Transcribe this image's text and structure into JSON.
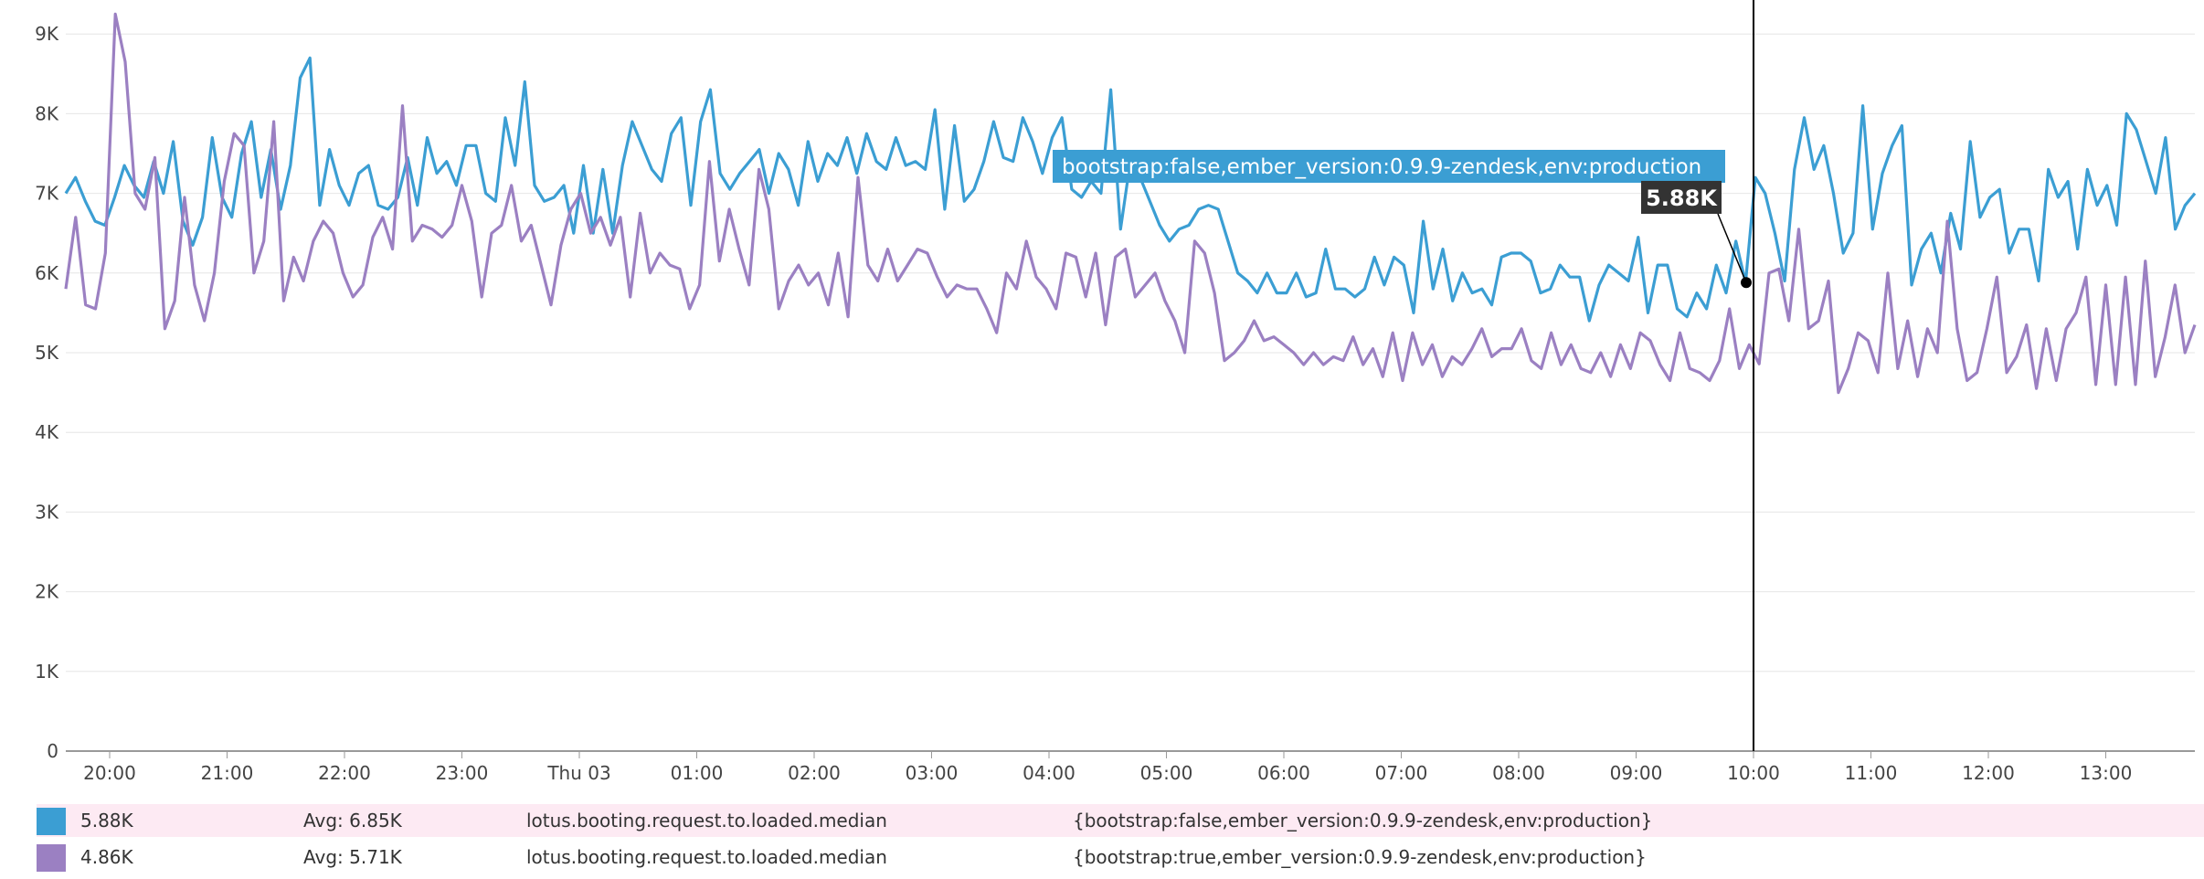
{
  "chart_data": {
    "type": "line",
    "y_ticks": [
      "0",
      "1K",
      "2K",
      "3K",
      "4K",
      "5K",
      "6K",
      "7K",
      "8K",
      "9K"
    ],
    "ylim": [
      0,
      9300
    ],
    "x_ticks": [
      "20:00",
      "21:00",
      "22:00",
      "23:00",
      "Thu 03",
      "01:00",
      "02:00",
      "03:00",
      "04:00",
      "05:00",
      "06:00",
      "07:00",
      "08:00",
      "09:00",
      "10:00",
      "11:00",
      "12:00",
      "13:00"
    ],
    "x_start": "19:36",
    "x_end": "13:48",
    "grid": "horizontal",
    "series": [
      {
        "color": "#3b9ed3",
        "values": [
          7000,
          7200,
          6900,
          6650,
          6600,
          6950,
          7350,
          7100,
          6950,
          7400,
          7000,
          7650,
          6650,
          6350,
          6700,
          7700,
          6950,
          6700,
          7500,
          7900,
          6950,
          7550,
          6800,
          7350,
          8450,
          8700,
          6850,
          7550,
          7100,
          6850,
          7250,
          7350,
          6850,
          6800,
          6950,
          7450,
          6850,
          7700,
          7250,
          7400,
          7100,
          7600,
          7600,
          7000,
          6900,
          7950,
          7350,
          8400,
          7100,
          6900,
          6950,
          7100,
          6500,
          7350,
          6500,
          7300,
          6500,
          7350,
          7900,
          7600,
          7300,
          7150,
          7750,
          7950,
          6850,
          7900,
          8300,
          7250,
          7050,
          7250,
          7400,
          7550,
          7000,
          7500,
          7300,
          6850,
          7650,
          7150,
          7500,
          7350,
          7700,
          7250,
          7750,
          7400,
          7300,
          7700,
          7350,
          7400,
          7300,
          8050,
          6800,
          7850,
          6900,
          7050,
          7400,
          7900,
          7450,
          7400,
          7950,
          7650,
          7250,
          7700,
          7950,
          7050,
          6950,
          7150,
          7000,
          8300,
          6550,
          7400,
          7200,
          6900,
          6600,
          6400,
          6550,
          6600,
          6800,
          6850,
          6800,
          6400,
          6000,
          5900,
          5750,
          6000,
          5750,
          5750,
          6000,
          5700,
          5750,
          6300,
          5800,
          5800,
          5700,
          5800,
          6200,
          5850,
          6200,
          6100,
          5500,
          6650,
          5800,
          6300,
          5650,
          6000,
          5750,
          5800,
          5600,
          6200,
          6250,
          6250,
          6150,
          5750,
          5800,
          6100,
          5950,
          5950,
          5400,
          5850,
          6100,
          6000,
          5900,
          6450,
          5500,
          6100,
          6100,
          5550,
          5450,
          5750,
          5550,
          6100,
          5750,
          6400,
          5880,
          7200,
          7000,
          6500,
          5900,
          7300,
          7950,
          7300,
          7600,
          7000,
          6250,
          6500,
          8100,
          6550,
          7250,
          7600,
          7850,
          5850,
          6300,
          6500,
          6000,
          6750,
          6300,
          7650,
          6700,
          6950,
          7050,
          6250,
          6550,
          6550,
          5900,
          7300,
          6950,
          7150,
          6300,
          7300,
          6850,
          7100,
          6600,
          8000,
          7800,
          7400,
          7000,
          7700,
          6550,
          6850,
          7000
        ]
      },
      {
        "color": "#9b80c2",
        "values": [
          5800,
          6700,
          5600,
          5550,
          6250,
          9250,
          8650,
          7000,
          6800,
          7450,
          5300,
          5650,
          6950,
          5850,
          5400,
          6000,
          7150,
          7750,
          7600,
          6000,
          6400,
          7900,
          5650,
          6200,
          5900,
          6400,
          6650,
          6500,
          6000,
          5700,
          5850,
          6450,
          6700,
          6300,
          8100,
          6400,
          6600,
          6550,
          6450,
          6600,
          7100,
          6650,
          5700,
          6500,
          6600,
          7100,
          6400,
          6600,
          6100,
          5600,
          6350,
          6800,
          7000,
          6500,
          6700,
          6350,
          6700,
          5700,
          6750,
          6000,
          6250,
          6100,
          6050,
          5550,
          5850,
          7400,
          6150,
          6800,
          6300,
          5850,
          7300,
          6800,
          5550,
          5900,
          6100,
          5850,
          6000,
          5600,
          6250,
          5450,
          7200,
          6100,
          5900,
          6300,
          5900,
          6100,
          6300,
          6250,
          5950,
          5700,
          5850,
          5800,
          5800,
          5550,
          5250,
          6000,
          5800,
          6400,
          5950,
          5800,
          5550,
          6250,
          6200,
          5700,
          6250,
          5350,
          6200,
          6300,
          5700,
          5850,
          6000,
          5650,
          5400,
          5000,
          6400,
          6250,
          5750,
          4900,
          5000,
          5150,
          5400,
          5150,
          5200,
          5100,
          5000,
          4850,
          5000,
          4850,
          4950,
          4900,
          5200,
          4850,
          5050,
          4700,
          5250,
          4650,
          5250,
          4850,
          5100,
          4700,
          4950,
          4850,
          5050,
          5300,
          4950,
          5050,
          5050,
          5300,
          4900,
          4800,
          5250,
          4850,
          5100,
          4800,
          4750,
          5000,
          4700,
          5100,
          4800,
          5250,
          5150,
          4850,
          4650,
          5250,
          4800,
          4750,
          4650,
          4900,
          5550,
          4800,
          5100,
          4860,
          6000,
          6050,
          5400,
          6550,
          5300,
          5400,
          5900,
          4500,
          4800,
          5250,
          5150,
          4750,
          6000,
          4800,
          5400,
          4700,
          5300,
          5000,
          6650,
          5300,
          4650,
          4750,
          5300,
          5950,
          4750,
          4950,
          5350,
          4550,
          5300,
          4650,
          5300,
          5500,
          5950,
          4600,
          5850,
          4600,
          5950,
          4600,
          6150,
          4700,
          5200,
          5850,
          5000,
          5350
        ]
      }
    ],
    "hover": {
      "label": "bootstrap:false,ember_version:0.9.9-zendesk,env:production",
      "value": "5.88K",
      "x": "10:00"
    }
  },
  "legend": [
    {
      "color": "#3b9ed3",
      "value": "5.88K",
      "avg": "Avg: 6.85K",
      "metric": "lotus.booting.request.to.loaded.median",
      "tags": "{bootstrap:false,ember_version:0.9.9-zendesk,env:production}",
      "highlighted": true
    },
    {
      "color": "#9b80c2",
      "value": "4.86K",
      "avg": "Avg: 5.71K",
      "metric": "lotus.booting.request.to.loaded.median",
      "tags": "{bootstrap:true,ember_version:0.9.9-zendesk,env:production}",
      "highlighted": false
    }
  ]
}
